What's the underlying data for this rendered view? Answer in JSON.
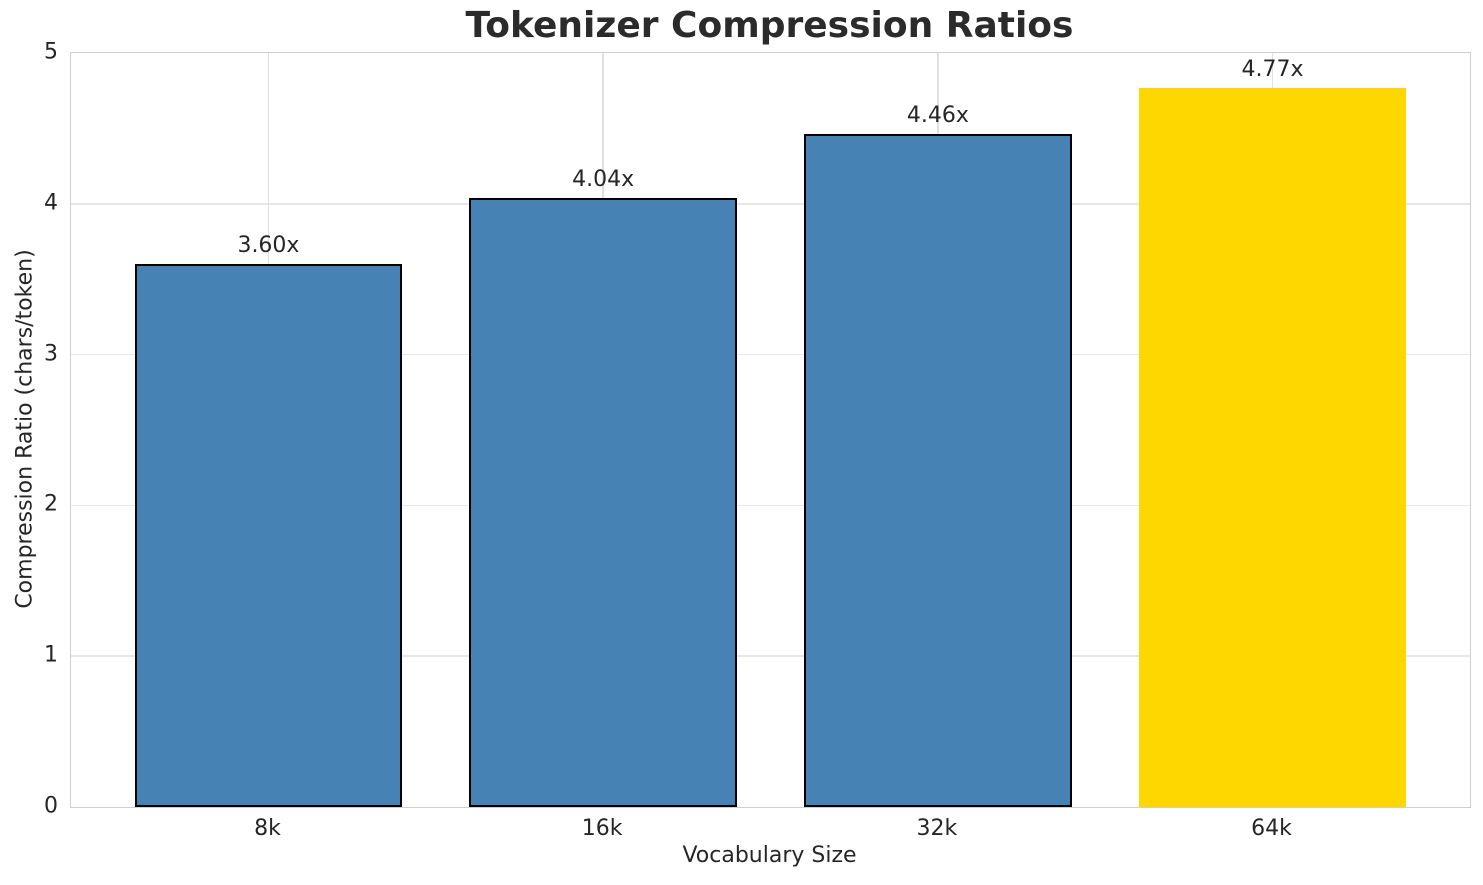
{
  "chart_data": {
    "type": "bar",
    "title": "Tokenizer Compression Ratios",
    "xlabel": "Vocabulary Size",
    "ylabel": "Compression Ratio (chars/token)",
    "categories": [
      "8k",
      "16k",
      "32k",
      "64k"
    ],
    "values": [
      3.6,
      4.04,
      4.46,
      4.77
    ],
    "bar_labels": [
      "3.60x",
      "4.04x",
      "4.46x",
      "4.77x"
    ],
    "bar_colors": [
      "#4682B4",
      "#4682B4",
      "#4682B4",
      "#FFD700"
    ],
    "bar_edge_colors": [
      "#000000",
      "#000000",
      "#000000",
      "none"
    ],
    "highlight_index": 3,
    "ylim": [
      0,
      5
    ],
    "yticks": [
      0,
      1,
      2,
      3,
      4,
      5
    ],
    "xlim": [
      -0.59,
      3.59
    ],
    "bar_width": 0.8,
    "grid": true,
    "legend_position": "none"
  }
}
